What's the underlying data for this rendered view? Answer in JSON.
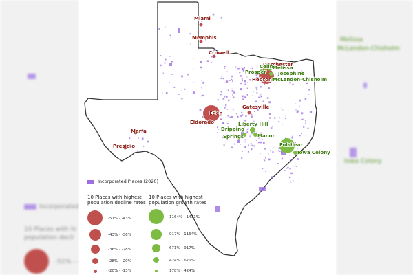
{
  "map": {
    "legend": {
      "incorporated_label": "Incorporated Places (2020)",
      "decline_title": "10 Places with highest population decline rates",
      "growth_title": "10 Places with highest population growth rates",
      "decline_bins": [
        "-51% - -43%",
        "-43% - -36%",
        "-36% - -28%",
        "-28% - -20%",
        "-20% - -13%"
      ],
      "growth_bins": [
        "1164% - 1411%",
        "917% - 1164%",
        "671% - 917%",
        "424% - 671%",
        "178% - 424%"
      ]
    },
    "colors": {
      "decline": "#c0504d",
      "growth": "#7dbb42",
      "incorporated": "#9c6ee0",
      "decline_label": "#8b1a12",
      "growth_label": "#3d7a10",
      "outline": "#333333"
    },
    "decline_places": [
      {
        "name": "Miami"
      },
      {
        "name": "Memphis"
      },
      {
        "name": "Crowell"
      },
      {
        "name": "Dorchester"
      },
      {
        "name": "Eden"
      },
      {
        "name": "Eldorado"
      },
      {
        "name": "Gatesville"
      },
      {
        "name": "Marfa"
      },
      {
        "name": "Presidio"
      },
      {
        "name": "Hebron"
      }
    ],
    "growth_places": [
      {
        "name": "Celina"
      },
      {
        "name": "Melissa"
      },
      {
        "name": "Prosper"
      },
      {
        "name": "Josephine"
      },
      {
        "name": "McLendon-Chisholm"
      },
      {
        "name": "Liberty Hill"
      },
      {
        "name": "Dripping Springs"
      },
      {
        "name": "Manor"
      },
      {
        "name": "Fulshear"
      },
      {
        "name": "Iowa Colony"
      }
    ]
  },
  "background": {
    "left_legend_label": "Incorporated",
    "left_legend_title": "10 Places with hi population decli",
    "left_bin": "-51% - -43%",
    "right_labels": [
      "Melissa",
      "McLendon-Chisholm",
      "Iowa Colony"
    ]
  }
}
